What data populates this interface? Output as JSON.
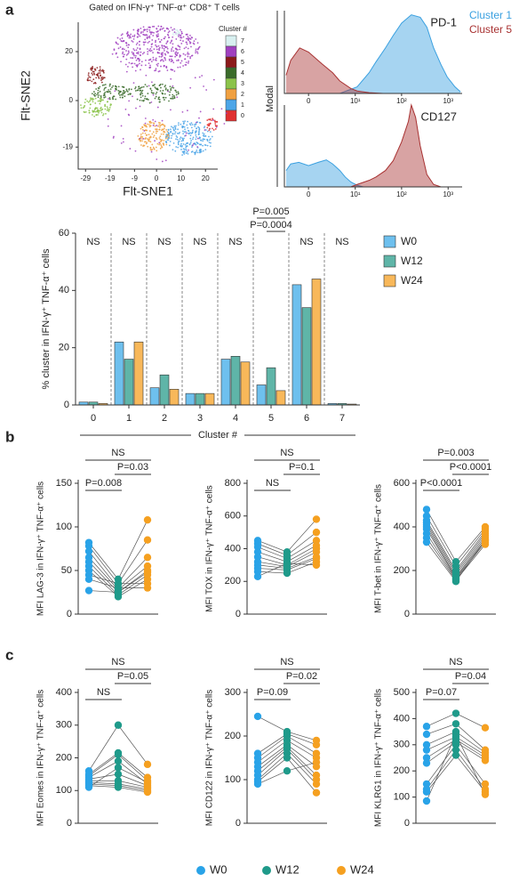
{
  "panel_labels": [
    "a",
    "b",
    "c"
  ],
  "legend": {
    "items": [
      {
        "name": "W0",
        "color": "#29a3e8"
      },
      {
        "name": "W12",
        "color": "#1f9a8a"
      },
      {
        "name": "W24",
        "color": "#f5a020"
      }
    ]
  },
  "chart_data": [
    {
      "type": "scatter",
      "title": "Gated on IFN-γ⁺ TNF-α⁺ CD8⁺ T cells",
      "xlabel": "Flt-SNE1",
      "ylabel": "Flt-SNE2",
      "xlim": [
        -32,
        25
      ],
      "xticks": [
        -29,
        -19,
        -9,
        0,
        10,
        20
      ],
      "ylim": [
        -28,
        32
      ],
      "yticks": [
        20,
        0,
        -19
      ],
      "legend_title": "Cluster #",
      "series": [
        {
          "name": "7",
          "color": "#d8f0f0"
        },
        {
          "name": "6",
          "color": "#a040c0"
        },
        {
          "name": "5",
          "color": "#8b1a1a"
        },
        {
          "name": "4",
          "color": "#3a6b2a"
        },
        {
          "name": "3",
          "color": "#8bc34a"
        },
        {
          "name": "2",
          "color": "#f0a040"
        },
        {
          "name": "1",
          "color": "#4da6e8"
        },
        {
          "name": "0",
          "color": "#e03030"
        }
      ]
    },
    {
      "type": "area",
      "title": "PD-1",
      "ylabel": "Modal",
      "xscale": "biexponential",
      "xlim": [
        -3,
        2000
      ],
      "ylim": [
        0,
        100
      ],
      "xticks": [
        0,
        {
          "value": 10,
          "label": "10¹"
        },
        {
          "value": 100,
          "label": "10²"
        },
        {
          "value": 1000,
          "label": "10³"
        }
      ],
      "series": [
        {
          "name": "Cluster 1",
          "color": "#3aa0e0",
          "x": [
            4.5,
            11,
            20,
            28,
            45,
            66,
            100,
            162,
            252,
            350,
            488,
            700,
            953,
            1400,
            1844
          ],
          "values": [
            0,
            8,
            25,
            38,
            55,
            70,
            85,
            95,
            92,
            80,
            55,
            35,
            20,
            8,
            2
          ]
        },
        {
          "name": "Cluster 5",
          "color": "#a83232",
          "x": [
            -2.7,
            -2,
            -0.9,
            0,
            1.4,
            3,
            4.5,
            8,
            11,
            20,
            40
          ],
          "values": [
            22,
            40,
            55,
            50,
            36,
            25,
            15,
            6,
            3,
            1,
            0
          ]
        }
      ]
    },
    {
      "type": "area",
      "title": "CD127",
      "xscale": "biexponential",
      "xlim": [
        -3,
        2000
      ],
      "ylim": [
        0,
        100
      ],
      "xticks": [
        0,
        {
          "value": 10,
          "label": "10¹"
        },
        {
          "value": 100,
          "label": "10²"
        },
        {
          "value": 1000,
          "label": "10³"
        }
      ],
      "series": [
        {
          "color": "#3aa0e0",
          "x": [
            -2.7,
            -2,
            -1,
            0,
            1,
            2,
            3,
            4.5,
            6,
            8,
            11,
            15
          ],
          "values": [
            20,
            28,
            30,
            26,
            30,
            33,
            28,
            20,
            12,
            6,
            2,
            0
          ]
        },
        {
          "color": "#a83232",
          "x": [
            8,
            11,
            20,
            28,
            45,
            66,
            100,
            140,
            162,
            200,
            252,
            350,
            488,
            700
          ],
          "values": [
            0,
            3,
            8,
            12,
            20,
            32,
            55,
            80,
            100,
            85,
            50,
            15,
            3,
            0
          ]
        }
      ]
    },
    {
      "type": "bar",
      "ylabel": "% cluster in IFN-γ⁺ TNF-α⁺ cells",
      "xlabel": "Cluster #",
      "categories": [
        "0",
        "1",
        "2",
        "3",
        "4",
        "5",
        "6",
        "7"
      ],
      "ylim": [
        0,
        60
      ],
      "yticks": [
        0,
        20,
        40,
        60
      ],
      "annotations": [
        "NS",
        "NS",
        "NS",
        "NS",
        "NS",
        [
          "P=0.005",
          "P=0.0004"
        ],
        "NS",
        "NS"
      ],
      "series": [
        {
          "name": "W0",
          "color": "#6ec0ee",
          "values": [
            1,
            22,
            6,
            4,
            16,
            7,
            42,
            0.5
          ]
        },
        {
          "name": "W12",
          "color": "#5fb5a8",
          "values": [
            1,
            16,
            10.5,
            4,
            17,
            13,
            34,
            0.5
          ]
        },
        {
          "name": "W24",
          "color": "#f8b85a",
          "values": [
            0.5,
            22,
            5.5,
            4,
            15,
            5,
            44,
            0.3
          ]
        }
      ]
    },
    {
      "type": "paired",
      "ylabel": "MFI LAG-3 in IFN-γ⁺ TNF-α⁺ cells",
      "ylim": [
        0,
        150
      ],
      "yticks": [
        0,
        50,
        100,
        150
      ],
      "brackets": [
        "NS",
        "P=0.03",
        "P=0.008"
      ],
      "series": [
        {
          "color": "#29a3e8",
          "values": [
            82,
            78,
            72,
            65,
            60,
            55,
            50,
            45,
            40,
            27
          ]
        },
        {
          "color": "#1f9a8a",
          "values": [
            40,
            35,
            30,
            28,
            25,
            22,
            20,
            35,
            30,
            25
          ]
        },
        {
          "color": "#f5a020",
          "values": [
            108,
            85,
            65,
            55,
            50,
            45,
            40,
            35,
            30,
            48
          ]
        }
      ]
    },
    {
      "type": "paired",
      "ylabel": "MFI TOX in IFN-γ⁺ TNF-α⁺ cells",
      "ylim": [
        0,
        800
      ],
      "yticks": [
        0,
        200,
        400,
        600,
        800
      ],
      "brackets": [
        "NS",
        "P=0.1",
        "NS"
      ],
      "series": [
        {
          "color": "#29a3e8",
          "values": [
            450,
            430,
            410,
            380,
            350,
            320,
            300,
            280,
            260,
            230
          ]
        },
        {
          "color": "#1f9a8a",
          "values": [
            380,
            360,
            340,
            320,
            300,
            290,
            280,
            270,
            250,
            310
          ]
        },
        {
          "color": "#f5a020",
          "values": [
            580,
            500,
            450,
            420,
            400,
            380,
            350,
            340,
            320,
            300
          ]
        }
      ]
    },
    {
      "type": "paired",
      "ylabel": "MFI T-bet in IFN-γ⁺ TNF-α⁺ cells",
      "ylim": [
        0,
        600
      ],
      "yticks": [
        0,
        200,
        400,
        600
      ],
      "brackets": [
        "P=0.003",
        "P<0.0001",
        "P<0.0001"
      ],
      "series": [
        {
          "color": "#29a3e8",
          "values": [
            480,
            450,
            430,
            420,
            410,
            400,
            390,
            370,
            350,
            330
          ]
        },
        {
          "color": "#1f9a8a",
          "values": [
            240,
            220,
            200,
            190,
            180,
            170,
            165,
            160,
            155,
            150
          ]
        },
        {
          "color": "#f5a020",
          "values": [
            400,
            390,
            380,
            370,
            360,
            350,
            340,
            330,
            320,
            340
          ]
        }
      ]
    },
    {
      "type": "paired",
      "ylabel": "MFI Eomes in IFN-γ⁺ TNF-α⁺ cells",
      "ylim": [
        0,
        400
      ],
      "yticks": [
        0,
        100,
        200,
        300,
        400
      ],
      "brackets": [
        "NS",
        "P=0.05",
        "NS"
      ],
      "series": [
        {
          "color": "#29a3e8",
          "values": [
            160,
            150,
            145,
            140,
            135,
            130,
            125,
            120,
            115,
            110
          ]
        },
        {
          "color": "#1f9a8a",
          "values": [
            300,
            215,
            210,
            190,
            150,
            130,
            120,
            115,
            110,
            170
          ]
        },
        {
          "color": "#f5a020",
          "values": [
            180,
            140,
            130,
            120,
            115,
            110,
            105,
            100,
            95,
            125
          ]
        }
      ]
    },
    {
      "type": "paired",
      "ylabel": "MFI CD122 in IFN-γ⁺ TNF-α⁺ cells",
      "ylim": [
        0,
        300
      ],
      "yticks": [
        0,
        100,
        200,
        300
      ],
      "brackets": [
        "NS",
        "P=0.02",
        "P=0.09"
      ],
      "series": [
        {
          "color": "#29a3e8",
          "values": [
            245,
            160,
            150,
            140,
            130,
            120,
            110,
            100,
            95,
            90
          ]
        },
        {
          "color": "#1f9a8a",
          "values": [
            210,
            205,
            200,
            190,
            180,
            175,
            170,
            160,
            150,
            120
          ]
        },
        {
          "color": "#f5a020",
          "values": [
            190,
            180,
            160,
            150,
            130,
            110,
            100,
            90,
            70,
            140
          ]
        }
      ]
    },
    {
      "type": "paired",
      "ylabel": "MFI KLRG1 in IFN-γ⁺ TNF-α⁺ cells",
      "ylim": [
        0,
        500
      ],
      "yticks": [
        0,
        100,
        200,
        300,
        400,
        500
      ],
      "brackets": [
        "NS",
        "P=0.04",
        "P=0.07"
      ],
      "series": [
        {
          "color": "#29a3e8",
          "values": [
            370,
            340,
            300,
            280,
            250,
            230,
            150,
            130,
            120,
            85
          ]
        },
        {
          "color": "#1f9a8a",
          "values": [
            420,
            380,
            350,
            330,
            320,
            310,
            300,
            280,
            260,
            340
          ]
        },
        {
          "color": "#f5a020",
          "values": [
            365,
            280,
            270,
            260,
            250,
            240,
            150,
            130,
            120,
            110
          ]
        }
      ]
    }
  ]
}
